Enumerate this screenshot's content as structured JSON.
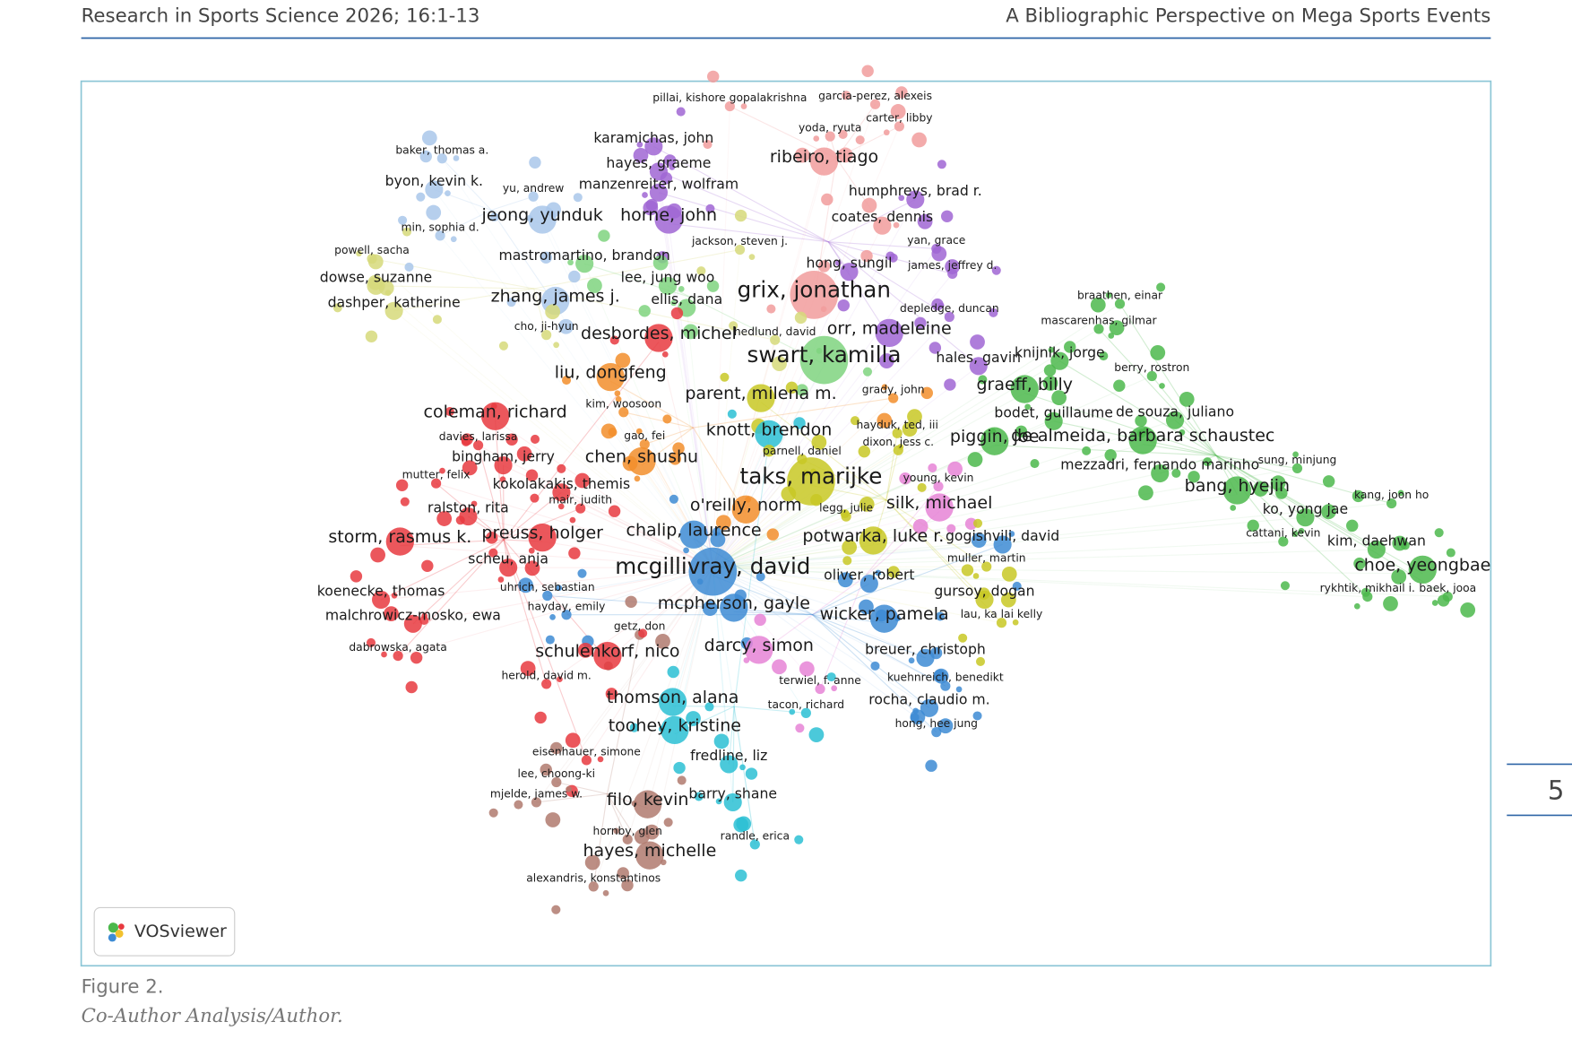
{
  "header": {
    "left": "Research in Sports Science 2026; 16:1-13",
    "right": "A Bibliographic Perspective on Mega Sports Events"
  },
  "page_number": "5",
  "figure": {
    "vosviewer": "VOSviewer",
    "nodes": [
      {
        "label": "pillai, kishore gopalakrishna"
      },
      {
        "label": "garcia-perez, alexeis"
      },
      {
        "label": "carter, libby"
      },
      {
        "label": "yoda, ryuta"
      },
      {
        "label": "karamichas, john"
      },
      {
        "label": "ribeiro, tiago"
      },
      {
        "label": "hayes, graeme"
      },
      {
        "label": "baker, thomas a."
      },
      {
        "label": "byon, kevin k."
      },
      {
        "label": "yu, andrew"
      },
      {
        "label": "manzenreiter, wolfram"
      },
      {
        "label": "humphreys, brad r."
      },
      {
        "label": "jeong, yunduk"
      },
      {
        "label": "horne, john"
      },
      {
        "label": "coates, dennis"
      },
      {
        "label": "min, sophia d."
      },
      {
        "label": "jackson, steven j."
      },
      {
        "label": "yan, grace"
      },
      {
        "label": "mastromartino, brandon"
      },
      {
        "label": "powell, sacha"
      },
      {
        "label": "hong, sungil"
      },
      {
        "label": "james, jeffrey d."
      },
      {
        "label": "lee, jung woo"
      },
      {
        "label": "dowse, suzanne"
      },
      {
        "label": "grix, jonathan"
      },
      {
        "label": "zhang, james j."
      },
      {
        "label": "ellis, dana"
      },
      {
        "label": "braathen, einar"
      },
      {
        "label": "depledge, duncan"
      },
      {
        "label": "dashper, katherine"
      },
      {
        "label": "mascarenhas, gilmar"
      },
      {
        "label": "cho, ji-hyun"
      },
      {
        "label": "desbordes, michel"
      },
      {
        "label": "hedlund, david"
      },
      {
        "label": "orr, madeleine"
      },
      {
        "label": "knijnik, jorge"
      },
      {
        "label": "swart, kamilla"
      },
      {
        "label": "hales, gavin"
      },
      {
        "label": "berry, rostron"
      },
      {
        "label": "liu, dongfeng"
      },
      {
        "label": "graeff, billy"
      },
      {
        "label": "parent, milena m."
      },
      {
        "label": "grady, john"
      },
      {
        "label": "kim, woosoon"
      },
      {
        "label": "coleman, richard"
      },
      {
        "label": "bodet, guillaume"
      },
      {
        "label": "de souza, juliano"
      },
      {
        "label": "hayduk, ted, iii"
      },
      {
        "label": "knott, brendon"
      },
      {
        "label": "davies, larissa"
      },
      {
        "label": "gao, fei"
      },
      {
        "label": "piggin, joe"
      },
      {
        "label": "de almeida, barbara schaustec"
      },
      {
        "label": "dixon, jess c."
      },
      {
        "label": "parnell, daniel"
      },
      {
        "label": "bingham, jerry"
      },
      {
        "label": "chen, shushu"
      },
      {
        "label": "mezzadri, fernando marinho"
      },
      {
        "label": "sung, minjung"
      },
      {
        "label": "taks, marijke"
      },
      {
        "label": "mutter, felix"
      },
      {
        "label": "young, kevin"
      },
      {
        "label": "kokolakakis, themis"
      },
      {
        "label": "bang, hyejin"
      },
      {
        "label": "mair, judith"
      },
      {
        "label": "silk, michael"
      },
      {
        "label": "o'reilly, norm"
      },
      {
        "label": "ralston, rita"
      },
      {
        "label": "kang, joon ho"
      },
      {
        "label": "legg, julie"
      },
      {
        "label": "ko, yong jae"
      },
      {
        "label": "chalip, laurence"
      },
      {
        "label": "preuss, holger"
      },
      {
        "label": "storm, rasmus k."
      },
      {
        "label": "potwarka, luke r."
      },
      {
        "label": "gogishvili, david"
      },
      {
        "label": "cattani, kevin"
      },
      {
        "label": "kim, daehwan"
      },
      {
        "label": "scheu, anja"
      },
      {
        "label": "muller, martin"
      },
      {
        "label": "mcgillivray, david"
      },
      {
        "label": "choe, yeongbae"
      },
      {
        "label": "oliver, robert"
      },
      {
        "label": "uhrich, sebastian"
      },
      {
        "label": "koenecke, thomas"
      },
      {
        "label": "gursoy, dogan"
      },
      {
        "label": "rykhtik, mikhail i."
      },
      {
        "label": "baek, jooa"
      },
      {
        "label": "hayday, emily"
      },
      {
        "label": "mcpherson, gayle"
      },
      {
        "label": "malchrowicz-mosko, ewa"
      },
      {
        "label": "wicker, pamela"
      },
      {
        "label": "lau, ka lai kelly"
      },
      {
        "label": "getz, don"
      },
      {
        "label": "darcy, simon"
      },
      {
        "label": "breuer, christoph"
      },
      {
        "label": "dabrowska, agata"
      },
      {
        "label": "schulenkorf, nico"
      },
      {
        "label": "herold, david m."
      },
      {
        "label": "terwiel, f. anne"
      },
      {
        "label": "kuehnreich, benedikt"
      },
      {
        "label": "thomson, alana"
      },
      {
        "label": "rocha, claudio m."
      },
      {
        "label": "tacon, richard"
      },
      {
        "label": "toohey, kristine"
      },
      {
        "label": "hong, hee jung"
      },
      {
        "label": "eisenhauer, simone"
      },
      {
        "label": "fredline, liz"
      },
      {
        "label": "lee, choong-ki"
      },
      {
        "label": "mjelde, james w."
      },
      {
        "label": "barry, shane"
      },
      {
        "label": "filo, kevin"
      },
      {
        "label": "hornby, glen"
      },
      {
        "label": "randle, erica"
      },
      {
        "label": "hayes, michelle"
      },
      {
        "label": "alexandris, konstantinos"
      }
    ]
  },
  "caption": {
    "label": "Figure 2.",
    "text": "Co-Author Analysis/Author."
  }
}
